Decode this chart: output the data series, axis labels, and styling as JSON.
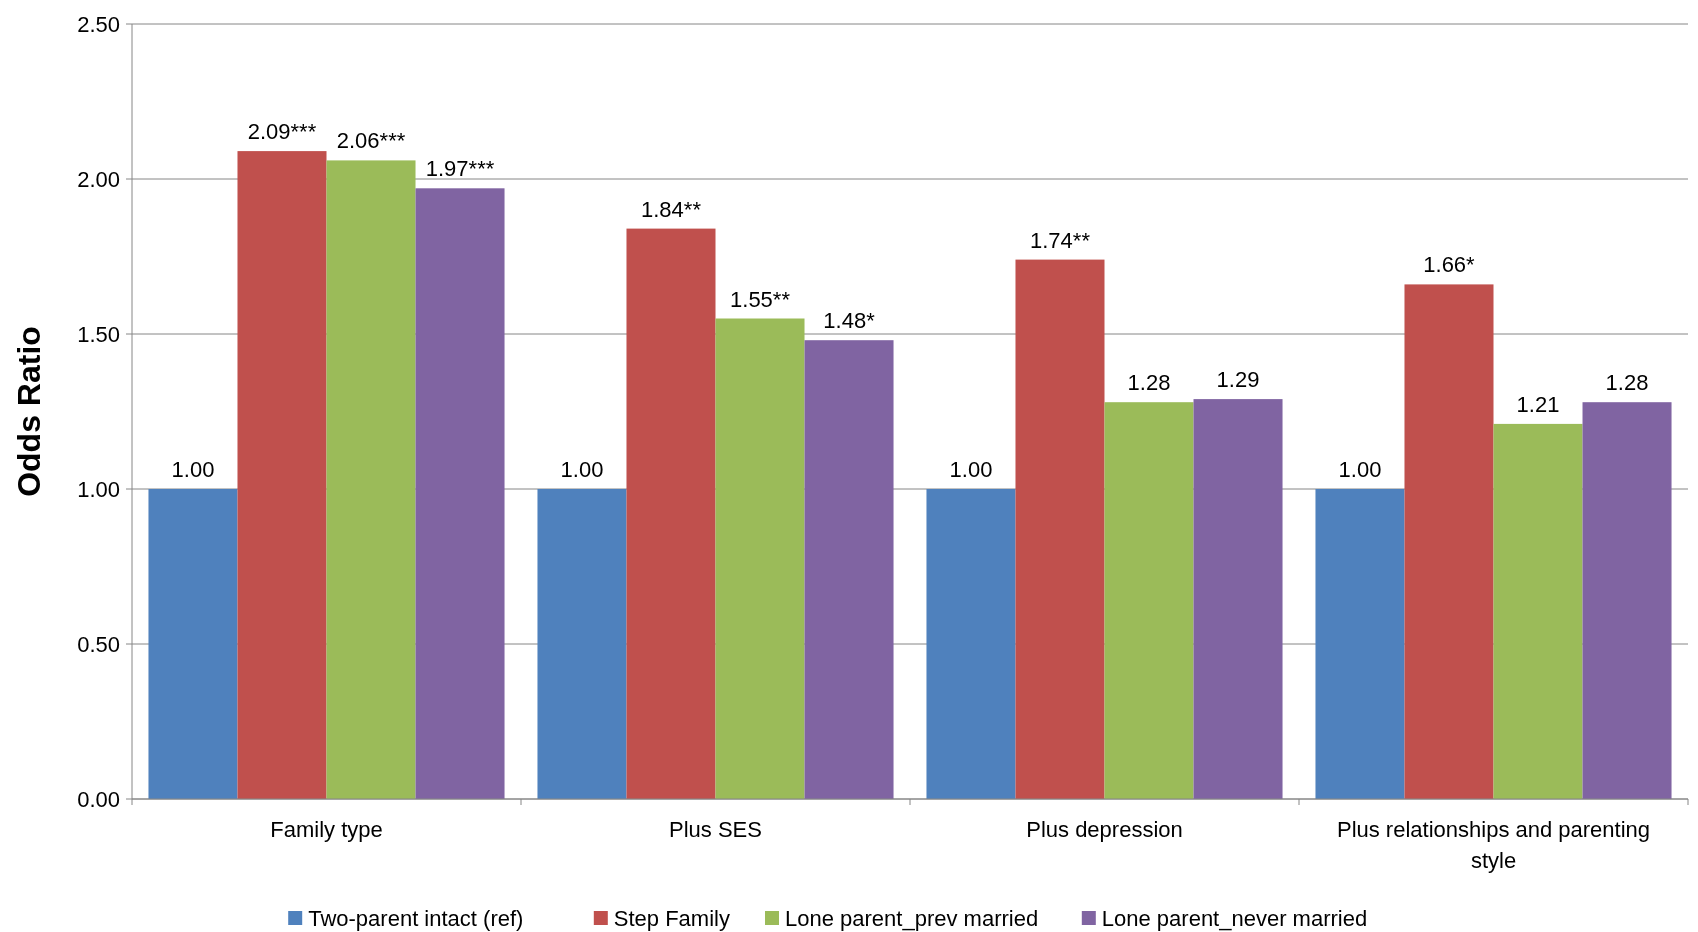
{
  "chart_data": {
    "type": "bar",
    "ylabel": "Odds Ratio",
    "categories": [
      "Family type",
      "Plus SES",
      "Plus depression",
      "Plus relationships and parenting style"
    ],
    "series": [
      {
        "name": "Two-parent intact (ref)",
        "color": "#4f81bd",
        "values": [
          1.0,
          1.0,
          1.0,
          1.0
        ],
        "value_labels": [
          "1.00",
          "1.00",
          "1.00",
          "1.00"
        ]
      },
      {
        "name": "Step Family",
        "color": "#c0504d",
        "values": [
          2.09,
          1.84,
          1.74,
          1.66
        ],
        "value_labels": [
          "2.09***",
          "1.84**",
          "1.74**",
          "1.66*"
        ]
      },
      {
        "name": "Lone parent_prev married",
        "color": "#9bbb59",
        "values": [
          2.06,
          1.55,
          1.28,
          1.21
        ],
        "value_labels": [
          "2.06***",
          "1.55**",
          "1.28",
          "1.21"
        ]
      },
      {
        "name": "Lone parent_never married",
        "color": "#8064a2",
        "values": [
          1.97,
          1.48,
          1.29,
          1.28
        ],
        "value_labels": [
          "1.97***",
          "1.48*",
          "1.29",
          "1.28"
        ]
      }
    ],
    "ylim": [
      0,
      2.5
    ],
    "yticks": [
      {
        "value": 0,
        "label": "0.00"
      },
      {
        "value": 0.5,
        "label": "0.50"
      },
      {
        "value": 1,
        "label": "1.00"
      },
      {
        "value": 1.5,
        "label": "1.50"
      },
      {
        "value": 2,
        "label": "2.00"
      },
      {
        "value": 2.5,
        "label": "2.50"
      }
    ],
    "grid": "y",
    "legend": "bottom"
  }
}
